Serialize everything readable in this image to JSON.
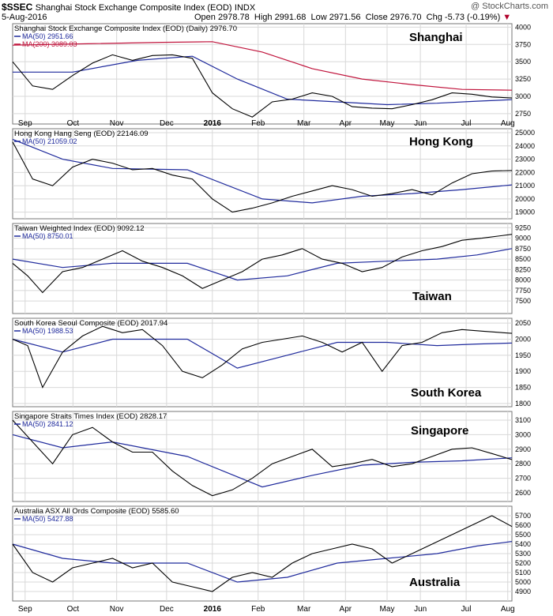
{
  "header": {
    "symbol": "$SSEC",
    "name": "Shanghai Stock Exchange Composite Index (EOD)",
    "exchange": "INDX",
    "date": "5-Aug-2016",
    "open_label": "Open",
    "open": "2978.78",
    "high_label": "High",
    "high": "2991.68",
    "low_label": "Low",
    "low": "2971.56",
    "close_label": "Close",
    "close": "2976.70",
    "chg_label": "Chg",
    "chg": "-5.73 (-0.19%)",
    "watermark": "@ StockCharts.com"
  },
  "colors": {
    "price": "#000000",
    "ma50": "#1f2a9c",
    "ma200": "#c0143c",
    "grid": "#d8d8d8",
    "chg_down": "#b0002a"
  },
  "chart_data": [
    {
      "type": "line",
      "title": "Shanghai Stock Exchange Composite Index (EOD) (Daily) 2976.70",
      "label": "Shanghai",
      "ylim": [
        2600,
        4050
      ],
      "yticks": [
        4000,
        3750,
        3500,
        3250,
        3000,
        2750
      ],
      "series": [
        {
          "name": "MA(50) 2951.66",
          "role": "ma50",
          "x": [
            0,
            0.12,
            0.25,
            0.36,
            0.45,
            0.55,
            0.65,
            0.75,
            0.85,
            0.93,
            1.0
          ],
          "values": [
            3350,
            3350,
            3520,
            3580,
            3250,
            2960,
            2920,
            2880,
            2900,
            2930,
            2952
          ]
        },
        {
          "name": "MA(200) 3089.03",
          "role": "ma200",
          "x": [
            0,
            0.15,
            0.3,
            0.4,
            0.5,
            0.6,
            0.7,
            0.8,
            0.9,
            1.0
          ],
          "values": [
            3740,
            3760,
            3780,
            3790,
            3640,
            3400,
            3250,
            3170,
            3100,
            3089
          ]
        },
        {
          "name": "",
          "role": "price",
          "x": [
            0,
            0.04,
            0.08,
            0.12,
            0.16,
            0.2,
            0.24,
            0.28,
            0.32,
            0.36,
            0.4,
            0.44,
            0.48,
            0.52,
            0.56,
            0.6,
            0.64,
            0.68,
            0.72,
            0.76,
            0.8,
            0.84,
            0.88,
            0.92,
            0.96,
            1.0
          ],
          "values": [
            3500,
            3150,
            3100,
            3300,
            3480,
            3600,
            3520,
            3590,
            3600,
            3550,
            3050,
            2820,
            2700,
            2920,
            2960,
            3050,
            3000,
            2850,
            2830,
            2820,
            2880,
            2950,
            3050,
            3030,
            2990,
            2976
          ]
        }
      ]
    },
    {
      "type": "line",
      "title": "Hong Kong Hang Seng (EOD) 22146.09",
      "label": "Hong Kong",
      "ylim": [
        18500,
        25300
      ],
      "yticks": [
        25000,
        24000,
        23000,
        22000,
        21000,
        20000,
        19000
      ],
      "series": [
        {
          "name": "MA(50) 21059.02",
          "role": "ma50",
          "x": [
            0,
            0.1,
            0.2,
            0.35,
            0.5,
            0.6,
            0.7,
            0.8,
            0.9,
            1.0
          ],
          "values": [
            24500,
            23000,
            22300,
            22200,
            20000,
            19700,
            20200,
            20400,
            20700,
            21059
          ]
        },
        {
          "name": "",
          "role": "price",
          "x": [
            0,
            0.04,
            0.08,
            0.12,
            0.16,
            0.2,
            0.24,
            0.28,
            0.32,
            0.36,
            0.4,
            0.44,
            0.48,
            0.52,
            0.56,
            0.6,
            0.64,
            0.68,
            0.72,
            0.76,
            0.8,
            0.84,
            0.88,
            0.92,
            0.96,
            1.0
          ],
          "values": [
            24300,
            21500,
            21000,
            22400,
            23000,
            22700,
            22200,
            22300,
            21800,
            21500,
            20000,
            19000,
            19300,
            19700,
            20200,
            20600,
            21000,
            20700,
            20200,
            20400,
            20700,
            20300,
            21200,
            21900,
            22100,
            22146
          ]
        }
      ]
    },
    {
      "type": "line",
      "title": "Taiwan Weighted Index (EOD) 9092.12",
      "label": "Taiwan",
      "ylim": [
        7200,
        9350
      ],
      "yticks": [
        9250,
        9000,
        8750,
        8500,
        8250,
        8000,
        7750,
        7500
      ],
      "series": [
        {
          "name": "MA(50) 8750.01",
          "role": "ma50",
          "x": [
            0,
            0.1,
            0.2,
            0.35,
            0.45,
            0.55,
            0.65,
            0.75,
            0.85,
            0.93,
            1.0
          ],
          "values": [
            8500,
            8300,
            8400,
            8400,
            8000,
            8100,
            8400,
            8450,
            8500,
            8600,
            8750
          ]
        },
        {
          "name": "",
          "role": "price",
          "x": [
            0,
            0.03,
            0.06,
            0.1,
            0.14,
            0.18,
            0.22,
            0.26,
            0.3,
            0.34,
            0.38,
            0.42,
            0.46,
            0.5,
            0.54,
            0.58,
            0.62,
            0.66,
            0.7,
            0.74,
            0.78,
            0.82,
            0.86,
            0.9,
            0.94,
            1.0
          ],
          "values": [
            8400,
            8100,
            7700,
            8200,
            8300,
            8500,
            8700,
            8450,
            8300,
            8100,
            7800,
            8000,
            8200,
            8500,
            8600,
            8750,
            8500,
            8400,
            8200,
            8300,
            8550,
            8700,
            8800,
            8950,
            9000,
            9092
          ]
        }
      ]
    },
    {
      "type": "line",
      "title": "South Korea Seoul Composite (EOD) 2017.94",
      "label": "South Korea",
      "ylim": [
        1790,
        2065
      ],
      "yticks": [
        2050,
        2000,
        1950,
        1900,
        1850,
        1800
      ],
      "series": [
        {
          "name": "MA(50) 1988.53",
          "role": "ma50",
          "x": [
            0,
            0.1,
            0.2,
            0.35,
            0.45,
            0.55,
            0.65,
            0.75,
            0.85,
            0.93,
            1.0
          ],
          "values": [
            2000,
            1960,
            2000,
            2000,
            1910,
            1950,
            1990,
            1990,
            1980,
            1985,
            1988
          ]
        },
        {
          "name": "",
          "role": "price",
          "x": [
            0,
            0.03,
            0.06,
            0.1,
            0.14,
            0.18,
            0.22,
            0.26,
            0.3,
            0.34,
            0.38,
            0.42,
            0.46,
            0.5,
            0.54,
            0.58,
            0.62,
            0.66,
            0.7,
            0.74,
            0.78,
            0.82,
            0.86,
            0.9,
            0.94,
            1.0
          ],
          "values": [
            2000,
            1980,
            1850,
            1960,
            2010,
            2040,
            2020,
            2030,
            1980,
            1900,
            1880,
            1920,
            1970,
            1990,
            2000,
            2010,
            1990,
            1960,
            1990,
            1900,
            1980,
            1990,
            2020,
            2030,
            2025,
            2018
          ]
        }
      ]
    },
    {
      "type": "line",
      "title": "Singapore Straits Times Index (EOD) 2828.17",
      "label": "Singapore",
      "ylim": [
        2540,
        3160
      ],
      "yticks": [
        3100,
        3000,
        2900,
        2800,
        2700,
        2600
      ],
      "series": [
        {
          "name": "MA(50) 2841.12",
          "role": "ma50",
          "x": [
            0,
            0.1,
            0.2,
            0.35,
            0.5,
            0.6,
            0.7,
            0.8,
            0.9,
            1.0
          ],
          "values": [
            3000,
            2910,
            2950,
            2850,
            2640,
            2720,
            2790,
            2810,
            2820,
            2841
          ]
        },
        {
          "name": "",
          "role": "price",
          "x": [
            0,
            0.04,
            0.08,
            0.12,
            0.16,
            0.2,
            0.24,
            0.28,
            0.32,
            0.36,
            0.4,
            0.44,
            0.48,
            0.52,
            0.56,
            0.6,
            0.64,
            0.68,
            0.72,
            0.76,
            0.8,
            0.84,
            0.88,
            0.92,
            0.96,
            1.0
          ],
          "values": [
            3100,
            2950,
            2800,
            3000,
            3050,
            2950,
            2880,
            2880,
            2750,
            2650,
            2580,
            2620,
            2700,
            2800,
            2850,
            2900,
            2780,
            2800,
            2830,
            2780,
            2800,
            2850,
            2900,
            2910,
            2870,
            2828
          ]
        }
      ]
    },
    {
      "type": "line",
      "title": "Australia ASX All Ords Composite (EOD) 5585.60",
      "label": "Australia",
      "ylim": [
        4800,
        5800
      ],
      "yticks": [
        5700,
        5600,
        5500,
        5400,
        5300,
        5200,
        5100,
        5000,
        4900
      ],
      "series": [
        {
          "name": "MA(50) 5427.88",
          "role": "ma50",
          "x": [
            0,
            0.1,
            0.2,
            0.35,
            0.45,
            0.55,
            0.65,
            0.75,
            0.85,
            0.93,
            1.0
          ],
          "values": [
            5400,
            5250,
            5200,
            5200,
            5000,
            5050,
            5200,
            5250,
            5300,
            5380,
            5428
          ]
        },
        {
          "name": "",
          "role": "price",
          "x": [
            0,
            0.04,
            0.08,
            0.12,
            0.16,
            0.2,
            0.24,
            0.28,
            0.32,
            0.36,
            0.4,
            0.44,
            0.48,
            0.52,
            0.56,
            0.6,
            0.64,
            0.68,
            0.72,
            0.76,
            0.8,
            0.84,
            0.88,
            0.92,
            0.96,
            1.0
          ],
          "values": [
            5400,
            5100,
            5000,
            5150,
            5200,
            5250,
            5150,
            5200,
            5000,
            4950,
            4900,
            5050,
            5100,
            5050,
            5200,
            5300,
            5350,
            5400,
            5350,
            5200,
            5300,
            5400,
            5500,
            5600,
            5700,
            5586
          ]
        }
      ]
    }
  ],
  "x_axis": {
    "labels": [
      "Sep",
      "Oct",
      "Nov",
      "Dec",
      "2016",
      "Feb",
      "Mar",
      "Apr",
      "May",
      "Jun",
      "Jul",
      "Aug"
    ],
    "positions": [
      0.03,
      0.145,
      0.25,
      0.37,
      0.48,
      0.59,
      0.7,
      0.8,
      0.9,
      0.98,
      1.09,
      1.19
    ]
  }
}
